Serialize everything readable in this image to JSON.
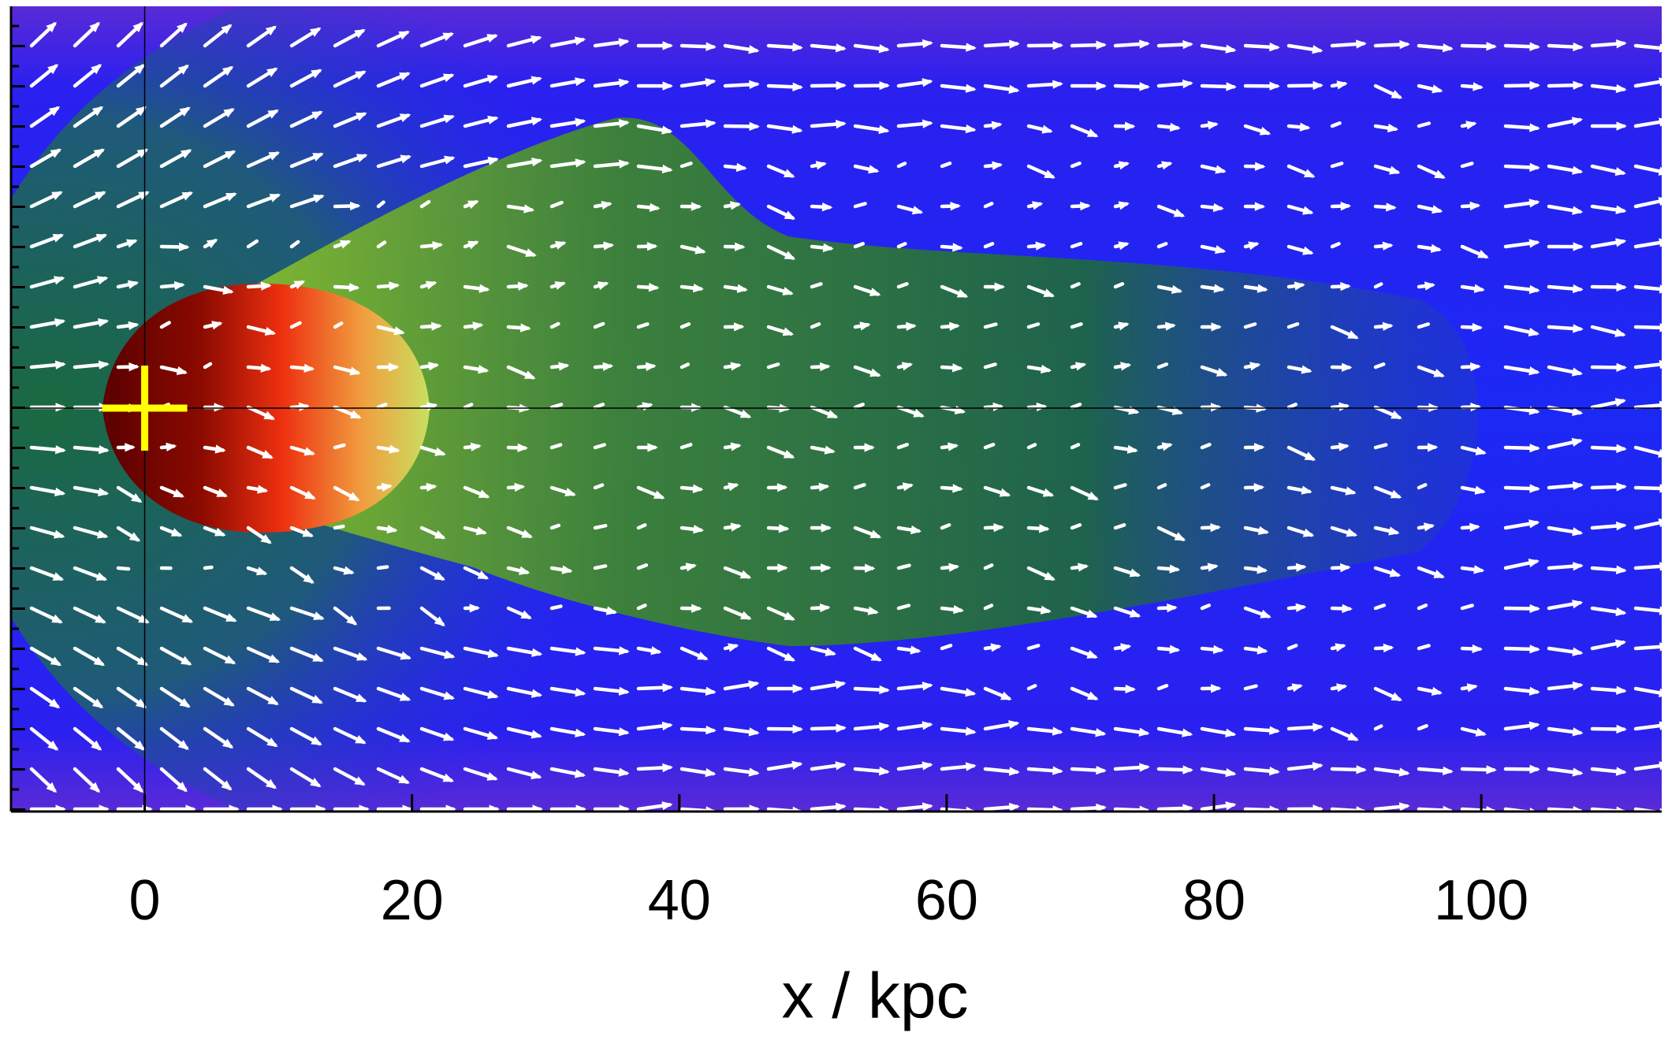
{
  "chart_data": {
    "type": "image",
    "xlabel": "x / kpc",
    "xlim": [
      -10,
      113.5
    ],
    "xticks": [
      0,
      20,
      40,
      60,
      80,
      100
    ],
    "marker": {
      "x": 0,
      "color": "#ffff00"
    }
  }
}
